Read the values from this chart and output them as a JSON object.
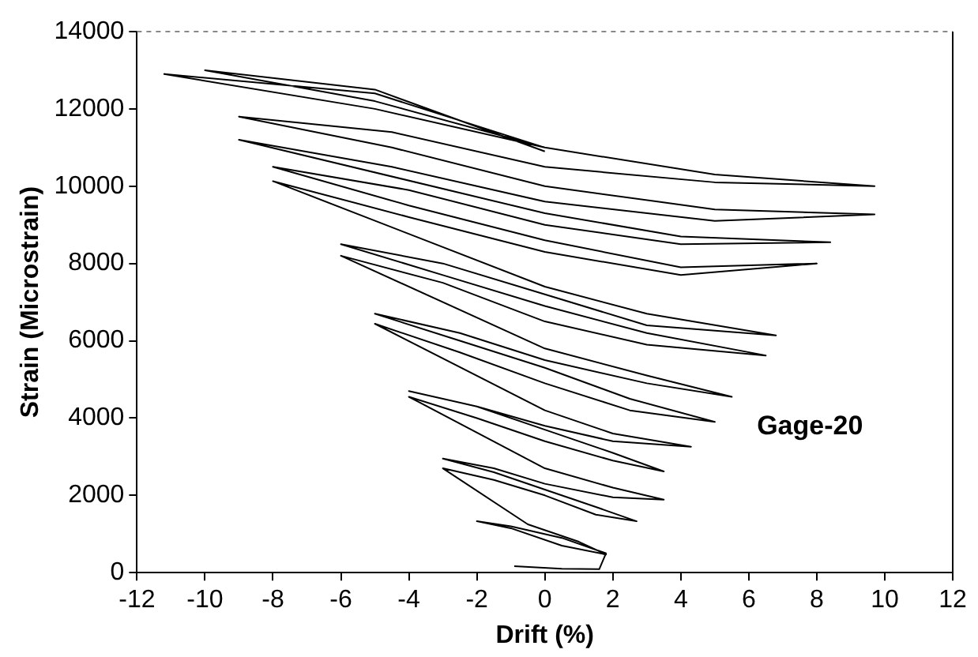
{
  "chart_data": {
    "type": "line",
    "xlabel": "Drift (%)",
    "ylabel": "Strain (Microstrain)",
    "annotations": [
      "Gage-20"
    ],
    "xlim": [
      -12,
      12
    ],
    "xticks": [
      -12,
      -10,
      -8,
      -6,
      -4,
      -2,
      0,
      2,
      4,
      6,
      8,
      10,
      12
    ],
    "ylim": [
      0,
      14000
    ],
    "yticks": [
      0,
      2000,
      4000,
      6000,
      8000,
      10000,
      12000,
      14000
    ],
    "grid": false,
    "legend": false,
    "marker": "none",
    "line_style": "solid",
    "series": [
      {
        "color": "#000000",
        "x": [
          -0.9,
          0.5,
          1.6,
          1.8,
          0.5,
          -1,
          -2,
          -1,
          0.5,
          1.8,
          1,
          -0.5,
          -3,
          -1.5,
          0,
          1.5,
          2.7,
          1.5,
          0,
          -1.5,
          -3,
          -1.5,
          0,
          2,
          3.5,
          2,
          0,
          -4,
          -2,
          0,
          2,
          3.5,
          2,
          0,
          -2,
          -4,
          -2,
          0,
          2,
          4.3,
          2,
          0,
          -5,
          -2.5,
          0,
          2.5,
          5,
          2.5,
          0,
          -2.5,
          -5,
          -2.5,
          0,
          3,
          5.5,
          3,
          0,
          -6,
          -3,
          0,
          3,
          6.5,
          3,
          0,
          -3,
          -6,
          -3,
          0,
          3,
          6.8,
          3,
          0,
          -8,
          -4,
          0,
          4,
          8,
          4,
          0,
          -4,
          -8,
          -4,
          0,
          4,
          8.4,
          4,
          0,
          -9,
          -4.5,
          0,
          5,
          9.7,
          5,
          0,
          -4.5,
          -9,
          -4.5,
          0,
          5,
          9.7,
          5,
          0,
          -5,
          -11.2,
          -5,
          0,
          -5,
          -10,
          -5,
          0
        ],
        "values": [
          170,
          100,
          90,
          500,
          900,
          1200,
          1330,
          1150,
          700,
          470,
          800,
          1250,
          2700,
          2400,
          2000,
          1500,
          1330,
          1700,
          2150,
          2600,
          2950,
          2700,
          2300,
          1950,
          1890,
          2200,
          2700,
          4550,
          4000,
          3400,
          2900,
          2620,
          3100,
          3700,
          4300,
          4700,
          4300,
          3800,
          3400,
          3260,
          3600,
          4200,
          6440,
          5700,
          4900,
          4200,
          3900,
          4500,
          5300,
          6000,
          6700,
          6200,
          5500,
          4900,
          4550,
          5100,
          5800,
          8200,
          7500,
          6500,
          5900,
          5620,
          6200,
          6900,
          7700,
          8500,
          8000,
          7200,
          6400,
          6140,
          6700,
          7400,
          10130,
          9200,
          8300,
          7700,
          8000,
          7900,
          8600,
          9500,
          10500,
          9900,
          9000,
          8500,
          8550,
          8700,
          9300,
          11200,
          10500,
          9600,
          9100,
          9270,
          9400,
          10000,
          11000,
          11800,
          11400,
          10500,
          10100,
          10000,
          10300,
          11000,
          12000,
          12900,
          12400,
          11000,
          12200,
          13000,
          12500,
          10900
        ]
      }
    ]
  }
}
